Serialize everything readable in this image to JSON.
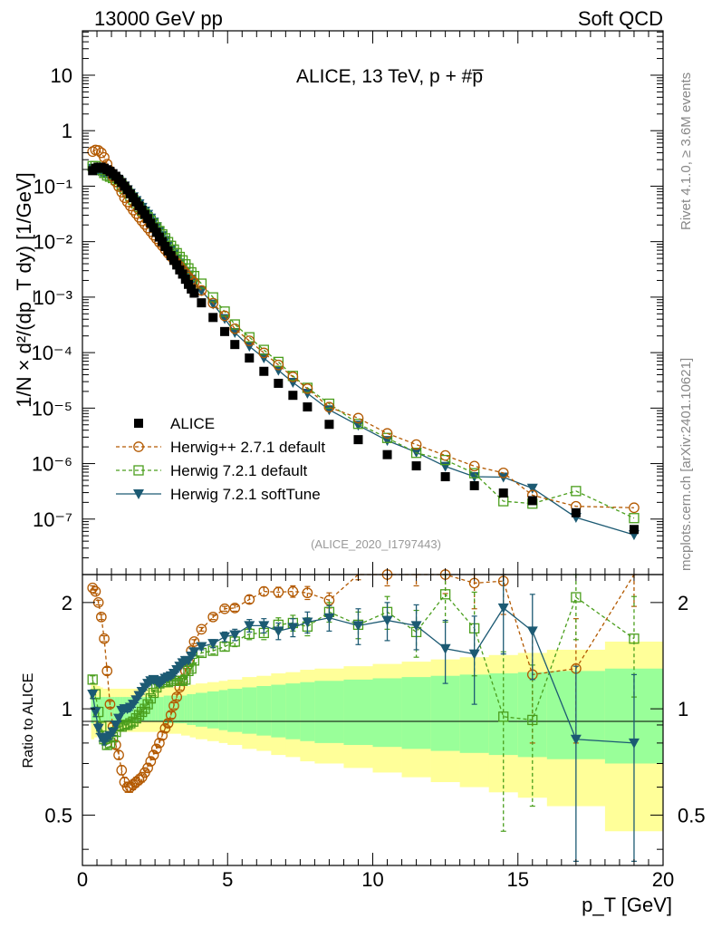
{
  "header": {
    "left": "13000 GeV pp",
    "right": "Soft QCD",
    "plot_title": "ALICE, 13 TeV, p + #p̅",
    "analysis_id": "(ALICE_2020_I1797443)",
    "side_top": "Rivet 4.1.0, ≥ 3.6M events",
    "side_bottom": "mcplots.cern.ch [arXiv:2401.10621]"
  },
  "axes": {
    "ylabel_main": "1/N × d²/(dp_T dy) [1/GeV]",
    "ylabel_ratio": "Ratio to ALICE",
    "xlabel": "p_T [GeV]",
    "x_range": [
      0,
      20
    ],
    "x_ticks": [
      0,
      5,
      10,
      15,
      20
    ],
    "x_tick_labels": [
      "0",
      "5",
      "10",
      "15",
      "20"
    ],
    "main_log_range": [
      -8,
      1.8
    ],
    "main_ticks": [
      {
        "exp": 1,
        "label": "10"
      },
      {
        "exp": 0,
        "label": "1"
      },
      {
        "exp": -1,
        "label": "10⁻¹"
      },
      {
        "exp": -2,
        "label": "10⁻²"
      },
      {
        "exp": -3,
        "label": "10⁻³"
      },
      {
        "exp": -4,
        "label": "10⁻⁴"
      },
      {
        "exp": -5,
        "label": "10⁻⁵"
      },
      {
        "exp": -6,
        "label": "10⁻⁶"
      },
      {
        "exp": -7,
        "label": "10⁻⁷"
      }
    ],
    "ratio_range": [
      0.36,
      2.4
    ],
    "ratio_ticks": [
      {
        "v": 0.5,
        "label": "0.5"
      },
      {
        "v": 1,
        "label": "1"
      },
      {
        "v": 2,
        "label": "2"
      }
    ]
  },
  "legend": [
    {
      "key": "alice",
      "label": "ALICE"
    },
    {
      "key": "hpp",
      "label": "Herwig++ 2.7.1 default"
    },
    {
      "key": "h72d",
      "label": "Herwig 7.2.1 default"
    },
    {
      "key": "h72s",
      "label": "Herwig 7.2.1 softTune"
    }
  ],
  "colors": {
    "alice": "#000000",
    "hpp": "#b35900",
    "h72d": "#4a9e1c",
    "h72s": "#1c5a73",
    "band_inner": "#99ff99",
    "band_outer": "#ffff99"
  },
  "chart_data": {
    "type": "scatter",
    "title": "ALICE, 13 TeV, p + #p̅",
    "xlabel": "p_T [GeV]",
    "ylabel": "1/N × d²/(dp_T dy) [1/GeV]",
    "xlim": [
      0,
      20
    ],
    "ylim": [
      1e-08,
      63
    ],
    "yscale": "log",
    "x": [
      0.35,
      0.45,
      0.55,
      0.65,
      0.75,
      0.85,
      0.95,
      1.05,
      1.15,
      1.25,
      1.35,
      1.45,
      1.55,
      1.65,
      1.75,
      1.85,
      1.95,
      2.05,
      2.15,
      2.25,
      2.35,
      2.45,
      2.55,
      2.65,
      2.75,
      2.85,
      2.95,
      3.05,
      3.15,
      3.25,
      3.35,
      3.45,
      3.55,
      3.65,
      3.75,
      3.85,
      4.1,
      4.5,
      4.9,
      5.25,
      5.75,
      6.25,
      6.75,
      7.25,
      7.75,
      8.5,
      9.5,
      10.5,
      11.5,
      12.5,
      13.5,
      14.5,
      15.5,
      17.0,
      19.0
    ],
    "series": [
      {
        "name": "ALICE",
        "values": [
          0.19,
          0.21,
          0.22,
          0.22,
          0.21,
          0.198,
          0.185,
          0.168,
          0.151,
          0.133,
          0.116,
          0.1,
          0.086,
          0.073,
          0.062,
          0.052,
          0.044,
          0.037,
          0.031,
          0.026,
          0.0215,
          0.0178,
          0.0147,
          0.0121,
          0.01,
          0.0082,
          0.0068,
          0.0056,
          0.0046,
          0.0038,
          0.0031,
          0.0026,
          0.0021,
          0.0017,
          0.0014,
          0.00118,
          0.00079,
          0.00043,
          0.00024,
          0.00014,
          8e-05,
          4.6e-05,
          2.8e-05,
          1.7e-05,
          1.05e-05,
          5.1e-06,
          2.7e-06,
          1.45e-06,
          9.1e-07,
          5.8e-07,
          4e-07,
          2.95e-07,
          2.15e-07,
          1.3e-07,
          6.5e-08
        ]
      },
      {
        "name": "Herwig++ 2.7.1 default",
        "values": [
          0.42,
          0.45,
          0.44,
          0.4,
          0.33,
          0.25,
          0.19,
          0.15,
          0.12,
          0.098,
          0.078,
          0.062,
          0.052,
          0.044,
          0.037,
          0.032,
          0.0275,
          0.0236,
          0.0204,
          0.0176,
          0.0152,
          0.0131,
          0.0113,
          0.0097,
          0.0084,
          0.0072,
          0.0062,
          0.0054,
          0.0047,
          0.0041,
          0.0036,
          0.0031,
          0.0027,
          0.0023,
          0.00205,
          0.00183,
          0.00132,
          0.00078,
          0.00046,
          0.00027,
          0.000163,
          9.9e-05,
          6e-05,
          3.65e-05,
          2.24e-05,
          1.04e-05,
          6.6e-06,
          3.5e-06,
          2.2e-06,
          1.4e-06,
          9e-07,
          6.8e-07,
          2.7e-07,
          1.7e-07,
          1.6e-07
        ]
      },
      {
        "name": "Herwig 7.2.1 default",
        "values": [
          0.23,
          0.23,
          0.215,
          0.195,
          0.173,
          0.156,
          0.148,
          0.14,
          0.13,
          0.118,
          0.103,
          0.09,
          0.077,
          0.066,
          0.057,
          0.049,
          0.042,
          0.036,
          0.0315,
          0.0275,
          0.024,
          0.021,
          0.018,
          0.0155,
          0.0135,
          0.0115,
          0.0098,
          0.0084,
          0.0072,
          0.0062,
          0.0053,
          0.0046,
          0.0039,
          0.0033,
          0.0028,
          0.0024,
          0.00175,
          0.00099,
          0.00055,
          0.000322,
          0.000189,
          0.000112,
          6.8e-05,
          3.8e-05,
          2.32e-05,
          1.2e-05,
          5.2e-06,
          2.9e-06,
          1.56e-06,
          1.16e-06,
          6.7e-07,
          2.1e-07,
          1.9e-07,
          3.2e-07,
          1.04e-07
        ]
      },
      {
        "name": "Herwig 7.2.1 softTune",
        "values": [
          0.21,
          0.2,
          0.19,
          0.18,
          0.17,
          0.165,
          0.155,
          0.145,
          0.136,
          0.125,
          0.115,
          0.1,
          0.086,
          0.074,
          0.064,
          0.055,
          0.048,
          0.0415,
          0.0355,
          0.031,
          0.0265,
          0.0225,
          0.0186,
          0.0155,
          0.0128,
          0.0105,
          0.0087,
          0.0072,
          0.006,
          0.0049,
          0.0041,
          0.0034,
          0.0029,
          0.0025,
          0.0021,
          0.0018,
          0.0013,
          0.00075,
          0.00041,
          0.00023,
          0.00013,
          8e-05,
          4.8e-05,
          2.9e-05,
          1.85e-05,
          9.3e-06,
          4.9e-06,
          2.6e-06,
          1.6e-06,
          8.9e-07,
          5.8e-07,
          5.7e-07,
          3.6e-07,
          1.07e-07,
          5.2e-08
        ]
      }
    ],
    "ratio": {
      "ylabel": "Ratio to ALICE",
      "ylim": [
        0.36,
        2.4
      ],
      "x_edges": [
        0.3,
        0.4,
        0.5,
        0.6,
        0.7,
        0.8,
        0.9,
        1.0,
        1.1,
        1.2,
        1.3,
        1.4,
        1.5,
        1.6,
        1.7,
        1.8,
        1.9,
        2.0,
        2.1,
        2.2,
        2.3,
        2.4,
        2.5,
        2.6,
        2.7,
        2.8,
        2.9,
        3.0,
        3.1,
        3.2,
        3.3,
        3.4,
        3.5,
        3.6,
        3.7,
        3.8,
        3.9,
        4.3,
        4.7,
        5.0,
        5.5,
        6.0,
        6.5,
        7.0,
        7.5,
        8.0,
        9.0,
        10.0,
        11.0,
        12.0,
        13.0,
        14.0,
        15.0,
        16.0,
        18.0,
        20.0
      ],
      "band_inner": [
        0.09,
        0.08,
        0.08,
        0.08,
        0.08,
        0.08,
        0.08,
        0.08,
        0.08,
        0.08,
        0.08,
        0.08,
        0.08,
        0.08,
        0.08,
        0.08,
        0.08,
        0.08,
        0.08,
        0.08,
        0.08,
        0.08,
        0.08,
        0.08,
        0.08,
        0.09,
        0.09,
        0.09,
        0.09,
        0.09,
        0.09,
        0.09,
        0.09,
        0.1,
        0.1,
        0.1,
        0.11,
        0.12,
        0.13,
        0.14,
        0.15,
        0.16,
        0.17,
        0.18,
        0.19,
        0.2,
        0.21,
        0.22,
        0.23,
        0.24,
        0.25,
        0.26,
        0.27,
        0.28,
        0.3
      ],
      "band_outer": [
        0.18,
        0.17,
        0.16,
        0.15,
        0.14,
        0.14,
        0.14,
        0.14,
        0.14,
        0.14,
        0.14,
        0.14,
        0.14,
        0.14,
        0.14,
        0.14,
        0.14,
        0.14,
        0.14,
        0.14,
        0.14,
        0.14,
        0.14,
        0.14,
        0.14,
        0.15,
        0.15,
        0.15,
        0.15,
        0.15,
        0.15,
        0.16,
        0.16,
        0.16,
        0.17,
        0.17,
        0.18,
        0.19,
        0.2,
        0.21,
        0.23,
        0.24,
        0.26,
        0.27,
        0.29,
        0.3,
        0.32,
        0.34,
        0.36,
        0.38,
        0.4,
        0.42,
        0.44,
        0.47,
        0.55
      ],
      "series": [
        {
          "name": "Herwig++ 2.7.1 default",
          "values": [
            2.2,
            2.15,
            2.0,
            1.82,
            1.58,
            1.28,
            1.03,
            0.89,
            0.79,
            0.74,
            0.67,
            0.62,
            0.6,
            0.6,
            0.61,
            0.62,
            0.63,
            0.64,
            0.66,
            0.68,
            0.71,
            0.74,
            0.77,
            0.8,
            0.84,
            0.88,
            0.91,
            0.96,
            1.02,
            1.08,
            1.15,
            1.2,
            1.28,
            1.36,
            1.46,
            1.55,
            1.68,
            1.82,
            1.92,
            1.93,
            2.04,
            2.15,
            2.14,
            2.15,
            2.13,
            2.03,
            2.45,
            2.4,
            2.45,
            2.4,
            2.27,
            2.3,
            1.25,
            1.3,
            2.45
          ],
          "err": [
            0.03,
            0.03,
            0.03,
            0.03,
            0.03,
            0.03,
            0.02,
            0.02,
            0.02,
            0.02,
            0.02,
            0.02,
            0.02,
            0.02,
            0.02,
            0.02,
            0.02,
            0.02,
            0.02,
            0.02,
            0.02,
            0.02,
            0.02,
            0.02,
            0.02,
            0.02,
            0.02,
            0.02,
            0.02,
            0.02,
            0.02,
            0.02,
            0.02,
            0.02,
            0.02,
            0.02,
            0.02,
            0.03,
            0.03,
            0.04,
            0.05,
            0.06,
            0.07,
            0.08,
            0.09,
            0.1,
            0.13,
            0.17,
            0.22,
            0.28,
            0.35,
            0.45,
            0.45,
            0.5,
            0.5
          ]
        },
        {
          "name": "Herwig 7.2.1 default",
          "values": [
            1.21,
            1.1,
            0.98,
            0.89,
            0.82,
            0.79,
            0.8,
            0.83,
            0.86,
            0.89,
            0.89,
            0.9,
            0.9,
            0.91,
            0.92,
            0.94,
            0.96,
            0.98,
            1.0,
            1.03,
            1.07,
            1.11,
            1.15,
            1.18,
            1.19,
            1.19,
            1.19,
            1.2,
            1.2,
            1.2,
            1.2,
            1.2,
            1.21,
            1.28,
            1.3,
            1.37,
            1.44,
            1.46,
            1.5,
            1.55,
            1.63,
            1.64,
            1.73,
            1.75,
            1.71,
            1.88,
            1.73,
            1.88,
            1.65,
            2.11,
            1.69,
            0.95,
            0.93,
            2.07,
            1.58
          ],
          "err": [
            0.03,
            0.03,
            0.03,
            0.03,
            0.02,
            0.02,
            0.02,
            0.02,
            0.02,
            0.02,
            0.02,
            0.02,
            0.02,
            0.02,
            0.02,
            0.02,
            0.02,
            0.02,
            0.02,
            0.02,
            0.02,
            0.02,
            0.02,
            0.02,
            0.02,
            0.02,
            0.02,
            0.02,
            0.02,
            0.02,
            0.02,
            0.02,
            0.02,
            0.02,
            0.02,
            0.02,
            0.03,
            0.03,
            0.04,
            0.05,
            0.06,
            0.07,
            0.08,
            0.09,
            0.1,
            0.12,
            0.15,
            0.2,
            0.25,
            0.35,
            0.45,
            0.5,
            0.4,
            0.5,
            0.5
          ]
        },
        {
          "name": "Herwig 7.2.1 softTune",
          "values": [
            1.1,
            0.98,
            0.88,
            0.83,
            0.81,
            0.83,
            0.84,
            0.86,
            0.9,
            0.94,
            0.99,
            1.0,
            1.0,
            1.01,
            1.03,
            1.06,
            1.09,
            1.12,
            1.15,
            1.18,
            1.2,
            1.21,
            1.2,
            1.18,
            1.2,
            1.22,
            1.23,
            1.24,
            1.26,
            1.29,
            1.32,
            1.35,
            1.37,
            1.37,
            1.41,
            1.45,
            1.5,
            1.53,
            1.6,
            1.62,
            1.72,
            1.72,
            1.66,
            1.7,
            1.76,
            1.81,
            1.72,
            1.78,
            1.72,
            1.48,
            1.43,
            1.93,
            1.66,
            0.82,
            0.8
          ],
          "err": [
            0.03,
            0.03,
            0.03,
            0.02,
            0.02,
            0.02,
            0.02,
            0.02,
            0.02,
            0.02,
            0.02,
            0.02,
            0.02,
            0.02,
            0.02,
            0.02,
            0.02,
            0.02,
            0.02,
            0.02,
            0.02,
            0.02,
            0.02,
            0.02,
            0.02,
            0.02,
            0.02,
            0.02,
            0.02,
            0.02,
            0.02,
            0.02,
            0.02,
            0.02,
            0.02,
            0.03,
            0.03,
            0.04,
            0.05,
            0.06,
            0.07,
            0.08,
            0.09,
            0.1,
            0.12,
            0.15,
            0.2,
            0.22,
            0.25,
            0.3,
            0.4,
            0.5,
            0.45,
            0.5,
            0.45
          ]
        }
      ]
    }
  }
}
